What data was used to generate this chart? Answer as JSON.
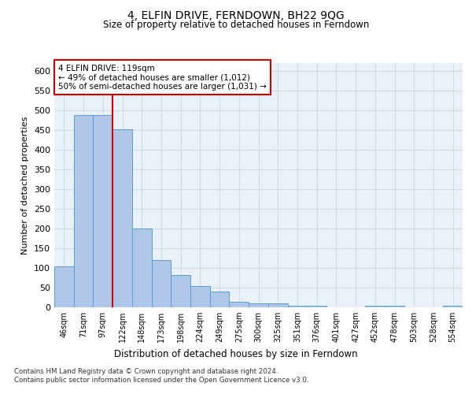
{
  "title": "4, ELFIN DRIVE, FERNDOWN, BH22 9QG",
  "subtitle": "Size of property relative to detached houses in Ferndown",
  "xlabel": "Distribution of detached houses by size in Ferndown",
  "ylabel": "Number of detached properties",
  "categories": [
    "46sqm",
    "71sqm",
    "97sqm",
    "122sqm",
    "148sqm",
    "173sqm",
    "198sqm",
    "224sqm",
    "249sqm",
    "275sqm",
    "300sqm",
    "325sqm",
    "351sqm",
    "376sqm",
    "401sqm",
    "427sqm",
    "452sqm",
    "478sqm",
    "503sqm",
    "528sqm",
    "554sqm"
  ],
  "values": [
    105,
    488,
    488,
    452,
    200,
    120,
    82,
    55,
    40,
    15,
    10,
    10,
    5,
    5,
    0,
    0,
    5,
    5,
    0,
    0,
    5
  ],
  "bar_color": "#aec6e8",
  "bar_edge_color": "#5a9fd4",
  "grid_color": "#d0dce8",
  "background_color": "#eaf1f8",
  "annotation_box_color": "#ffffff",
  "annotation_border_color": "#cc0000",
  "property_line_color": "#cc0000",
  "property_line_x": 2,
  "annotation_title": "4 ELFIN DRIVE: 119sqm",
  "annotation_line1": "← 49% of detached houses are smaller (1,012)",
  "annotation_line2": "50% of semi-detached houses are larger (1,031) →",
  "ylim": [
    0,
    620
  ],
  "yticks": [
    0,
    50,
    100,
    150,
    200,
    250,
    300,
    350,
    400,
    450,
    500,
    550,
    600
  ],
  "footer": "Contains HM Land Registry data © Crown copyright and database right 2024.\nContains public sector information licensed under the Open Government Licence v3.0."
}
